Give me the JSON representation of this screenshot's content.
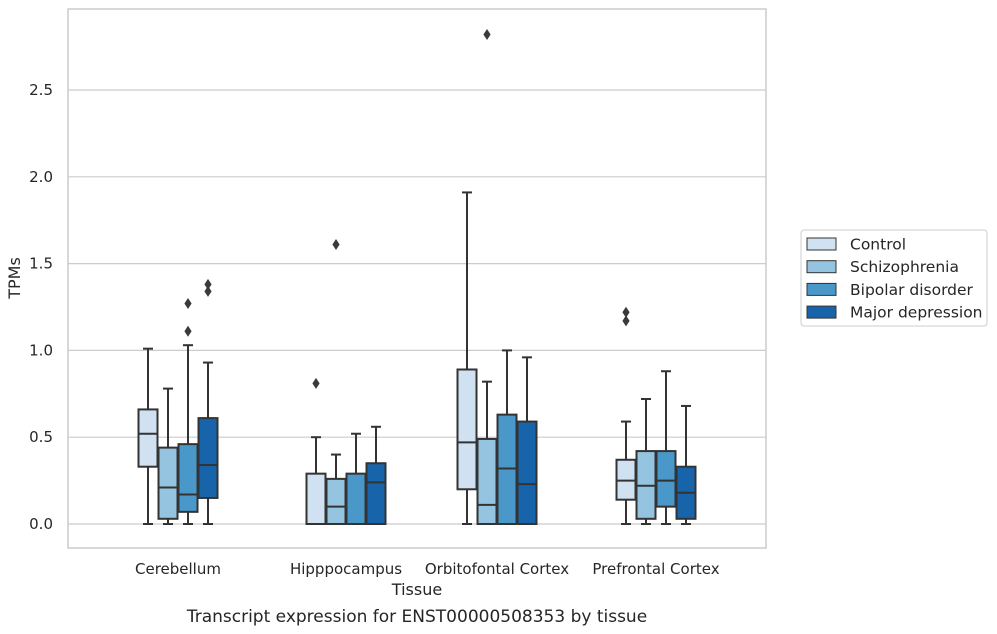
{
  "caption": "Transcript expression for ENST00000508353 by tissue",
  "chart_data": {
    "type": "box",
    "xlabel": "Tissue",
    "ylabel": "TPMs",
    "ylim": [
      -0.14,
      2.95
    ],
    "yticks": [
      0.0,
      0.5,
      1.0,
      1.5,
      2.0,
      2.5
    ],
    "ytick_labels": [
      "0.0",
      "0.5",
      "1.0",
      "1.5",
      "2.0",
      "2.5"
    ],
    "grid": "horizontal",
    "legend_position": "right",
    "categories": [
      "Cerebellum",
      "Hipppocampus",
      "Orbitofontal Cortex",
      "Prefrontal Cortex"
    ],
    "series": [
      {
        "name": "Control",
        "color": "#d0e1f2",
        "boxes": [
          {
            "whislo": 0.0,
            "q1": 0.33,
            "med": 0.52,
            "q3": 0.66,
            "whishi": 1.01,
            "fliers": []
          },
          {
            "whislo": 0.0,
            "q1": 0.0,
            "med": 0.0,
            "q3": 0.29,
            "whishi": 0.5,
            "fliers": [
              0.81
            ]
          },
          {
            "whislo": 0.0,
            "q1": 0.2,
            "med": 0.47,
            "q3": 0.89,
            "whishi": 1.91,
            "fliers": []
          },
          {
            "whislo": 0.0,
            "q1": 0.14,
            "med": 0.25,
            "q3": 0.37,
            "whishi": 0.59,
            "fliers": [
              1.17,
              1.22
            ]
          }
        ]
      },
      {
        "name": "Schizophrenia",
        "color": "#94c4df",
        "boxes": [
          {
            "whislo": 0.0,
            "q1": 0.03,
            "med": 0.21,
            "q3": 0.44,
            "whishi": 0.78,
            "fliers": []
          },
          {
            "whislo": 0.0,
            "q1": 0.0,
            "med": 0.1,
            "q3": 0.26,
            "whishi": 0.4,
            "fliers": [
              1.61
            ]
          },
          {
            "whislo": 0.0,
            "q1": 0.0,
            "med": 0.11,
            "q3": 0.49,
            "whishi": 0.82,
            "fliers": [
              2.82
            ]
          },
          {
            "whislo": 0.0,
            "q1": 0.03,
            "med": 0.22,
            "q3": 0.42,
            "whishi": 0.72,
            "fliers": []
          }
        ]
      },
      {
        "name": "Bipolar disorder",
        "color": "#4a98c9",
        "boxes": [
          {
            "whislo": 0.0,
            "q1": 0.07,
            "med": 0.17,
            "q3": 0.46,
            "whishi": 1.03,
            "fliers": [
              1.11,
              1.27
            ]
          },
          {
            "whislo": 0.0,
            "q1": 0.0,
            "med": 0.0,
            "q3": 0.29,
            "whishi": 0.52,
            "fliers": []
          },
          {
            "whislo": 0.0,
            "q1": 0.0,
            "med": 0.32,
            "q3": 0.63,
            "whishi": 1.0,
            "fliers": []
          },
          {
            "whislo": 0.0,
            "q1": 0.1,
            "med": 0.25,
            "q3": 0.42,
            "whishi": 0.88,
            "fliers": []
          }
        ]
      },
      {
        "name": "Major depression",
        "color": "#1764ab",
        "boxes": [
          {
            "whislo": 0.0,
            "q1": 0.15,
            "med": 0.34,
            "q3": 0.61,
            "whishi": 0.93,
            "fliers": [
              1.34,
              1.38
            ]
          },
          {
            "whislo": 0.0,
            "q1": 0.0,
            "med": 0.24,
            "q3": 0.35,
            "whishi": 0.56,
            "fliers": []
          },
          {
            "whislo": 0.0,
            "q1": 0.0,
            "med": 0.23,
            "q3": 0.59,
            "whishi": 0.96,
            "fliers": []
          },
          {
            "whislo": 0.0,
            "q1": 0.03,
            "med": 0.18,
            "q3": 0.33,
            "whishi": 0.68,
            "fliers": []
          }
        ]
      }
    ],
    "style": {
      "edge_color": "#333333",
      "grid_color": "#cccccc",
      "frame_color": "#cccccc"
    }
  }
}
